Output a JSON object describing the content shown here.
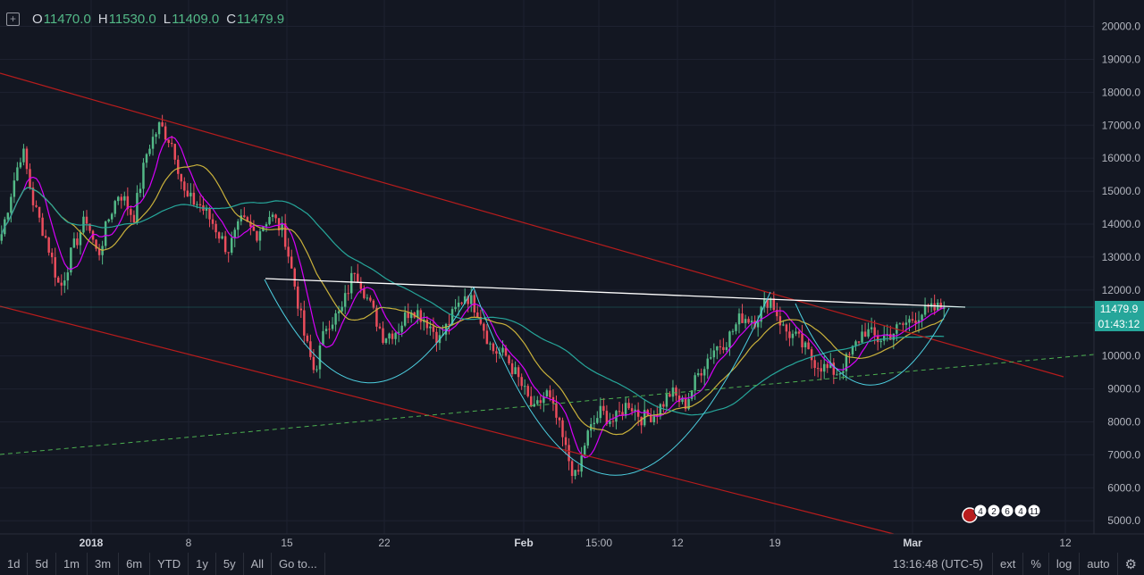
{
  "ohlc": {
    "o_label": "O",
    "o_value": "11470.0",
    "h_label": "H",
    "h_value": "11530.0",
    "l_label": "L",
    "l_value": "11409.0",
    "c_label": "C",
    "c_value": "11479.9"
  },
  "price_tag": {
    "last": "11479.9",
    "countdown": "01:43:12"
  },
  "toolbar": {
    "ranges": [
      "1d",
      "5d",
      "1m",
      "3m",
      "6m",
      "YTD",
      "1y",
      "5y",
      "All"
    ],
    "goto": "Go to...",
    "time": "13:16:48 (UTC-5)",
    "ext": "ext",
    "percent": "%",
    "log": "log",
    "auto": "auto"
  },
  "event_badges": [
    "4",
    "2",
    "6",
    "4",
    "11"
  ],
  "colors": {
    "up": "#53b987",
    "down": "#eb4d5c",
    "background": "#131722",
    "ma_fast": "#d500f9",
    "ma_mid": "#c9b13b",
    "ma_slow": "#26a69a",
    "resistance": "#ffffff",
    "channel": "#b71c1c",
    "trend_support": "#4caf50",
    "patterns": "#4dd0e1"
  },
  "chart_data": {
    "type": "candlestick",
    "ylim": [
      4600,
      20800
    ],
    "y_ticks": [
      "20000.0",
      "19000.0",
      "18000.0",
      "17000.0",
      "16000.0",
      "15000.0",
      "14000.0",
      "13000.0",
      "12000.0",
      "11000.0",
      "10000.0",
      "9000.0",
      "8000.0",
      "7000.0",
      "6000.0",
      "5000.0"
    ],
    "x_ticks": [
      "2018",
      "8",
      "15",
      "22",
      "Feb",
      "15:00",
      "12",
      "19",
      "Mar",
      "12"
    ],
    "last_close": 11479.9,
    "price_path": [
      {
        "t": 0,
        "p": 13700
      },
      {
        "t": 0.012,
        "p": 15200
      },
      {
        "t": 0.022,
        "p": 16300
      },
      {
        "t": 0.034,
        "p": 14600
      },
      {
        "t": 0.048,
        "p": 13500
      },
      {
        "t": 0.062,
        "p": 12000
      },
      {
        "t": 0.075,
        "p": 13200
      },
      {
        "t": 0.09,
        "p": 14200
      },
      {
        "t": 0.102,
        "p": 13000
      },
      {
        "t": 0.115,
        "p": 14300
      },
      {
        "t": 0.125,
        "p": 15000
      },
      {
        "t": 0.14,
        "p": 14200
      },
      {
        "t": 0.155,
        "p": 16300
      },
      {
        "t": 0.168,
        "p": 17000
      },
      {
        "t": 0.182,
        "p": 16400
      },
      {
        "t": 0.195,
        "p": 14800
      },
      {
        "t": 0.21,
        "p": 14600
      },
      {
        "t": 0.225,
        "p": 14000
      },
      {
        "t": 0.24,
        "p": 13200
      },
      {
        "t": 0.255,
        "p": 14100
      },
      {
        "t": 0.27,
        "p": 13700
      },
      {
        "t": 0.285,
        "p": 14300
      },
      {
        "t": 0.3,
        "p": 13700
      },
      {
        "t": 0.312,
        "p": 12000
      },
      {
        "t": 0.322,
        "p": 10500
      },
      {
        "t": 0.332,
        "p": 9500
      },
      {
        "t": 0.345,
        "p": 11000
      },
      {
        "t": 0.36,
        "p": 11300
      },
      {
        "t": 0.375,
        "p": 12700
      },
      {
        "t": 0.39,
        "p": 11600
      },
      {
        "t": 0.405,
        "p": 10600
      },
      {
        "t": 0.42,
        "p": 10800
      },
      {
        "t": 0.435,
        "p": 11500
      },
      {
        "t": 0.45,
        "p": 11100
      },
      {
        "t": 0.465,
        "p": 10500
      },
      {
        "t": 0.48,
        "p": 11300
      },
      {
        "t": 0.492,
        "p": 11900
      },
      {
        "t": 0.505,
        "p": 11400
      },
      {
        "t": 0.52,
        "p": 10200
      },
      {
        "t": 0.535,
        "p": 10000
      },
      {
        "t": 0.55,
        "p": 9200
      },
      {
        "t": 0.565,
        "p": 8300
      },
      {
        "t": 0.578,
        "p": 8900
      },
      {
        "t": 0.59,
        "p": 8000
      },
      {
        "t": 0.6,
        "p": 7000
      },
      {
        "t": 0.61,
        "p": 6200
      },
      {
        "t": 0.62,
        "p": 7500
      },
      {
        "t": 0.635,
        "p": 8300
      },
      {
        "t": 0.65,
        "p": 8000
      },
      {
        "t": 0.665,
        "p": 8600
      },
      {
        "t": 0.68,
        "p": 8100
      },
      {
        "t": 0.695,
        "p": 8300
      },
      {
        "t": 0.71,
        "p": 8900
      },
      {
        "t": 0.725,
        "p": 8500
      },
      {
        "t": 0.74,
        "p": 9500
      },
      {
        "t": 0.755,
        "p": 10200
      },
      {
        "t": 0.77,
        "p": 10500
      },
      {
        "t": 0.785,
        "p": 11200
      },
      {
        "t": 0.8,
        "p": 11100
      },
      {
        "t": 0.815,
        "p": 11800
      },
      {
        "t": 0.83,
        "p": 10800
      },
      {
        "t": 0.845,
        "p": 10500
      },
      {
        "t": 0.86,
        "p": 9900
      },
      {
        "t": 0.875,
        "p": 9600
      },
      {
        "t": 0.888,
        "p": 9500
      },
      {
        "t": 0.9,
        "p": 10000
      },
      {
        "t": 0.915,
        "p": 10800
      },
      {
        "t": 0.93,
        "p": 10500
      },
      {
        "t": 0.945,
        "p": 10700
      },
      {
        "t": 0.96,
        "p": 11000
      },
      {
        "t": 0.975,
        "p": 11300
      },
      {
        "t": 1.0,
        "p": 11480
      }
    ]
  }
}
